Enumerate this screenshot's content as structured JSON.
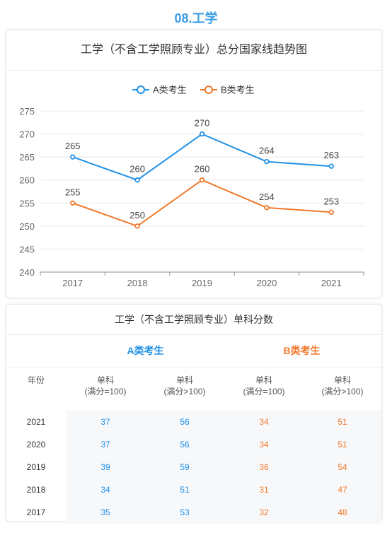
{
  "section": {
    "title": "08.工学"
  },
  "chart_data": {
    "type": "line",
    "title": "工学（不含工学照顾专业）总分国家线趋势图",
    "categories": [
      "2017",
      "2018",
      "2019",
      "2020",
      "2021"
    ],
    "series": [
      {
        "name": "A类考生",
        "color": "#1e90e8",
        "values": [
          265,
          260,
          270,
          264,
          263
        ]
      },
      {
        "name": "B类考生",
        "color": "#f0782a",
        "values": [
          255,
          250,
          260,
          254,
          253
        ]
      }
    ],
    "ylim": [
      240,
      275
    ],
    "yticks": [
      275,
      270,
      265,
      260,
      255,
      250,
      245,
      240
    ],
    "legend_position": "top-center",
    "grid": true
  },
  "table": {
    "title": "工学（不含工学照顾专业）单科分数",
    "group_a": "A类考生",
    "group_b": "B类考生",
    "colors": {
      "a": "#1e90e8",
      "b": "#f0782a"
    },
    "headers": {
      "year": "年份",
      "c1_line1": "单科",
      "c1_line2": "(满分=100)",
      "c2_line1": "单科",
      "c2_line2": "(满分>100)",
      "c3_line1": "单科",
      "c3_line2": "(满分=100)",
      "c4_line1": "单科",
      "c4_line2": "(满分>100)"
    },
    "rows": [
      {
        "year": "2021",
        "a_100": "37",
        "a_over": "56",
        "b_100": "34",
        "b_over": "51"
      },
      {
        "year": "2020",
        "a_100": "37",
        "a_over": "56",
        "b_100": "34",
        "b_over": "51"
      },
      {
        "year": "2019",
        "a_100": "39",
        "a_over": "59",
        "b_100": "36",
        "b_over": "54"
      },
      {
        "year": "2018",
        "a_100": "34",
        "a_over": "51",
        "b_100": "31",
        "b_over": "47"
      },
      {
        "year": "2017",
        "a_100": "35",
        "a_over": "53",
        "b_100": "32",
        "b_over": "48"
      }
    ]
  }
}
